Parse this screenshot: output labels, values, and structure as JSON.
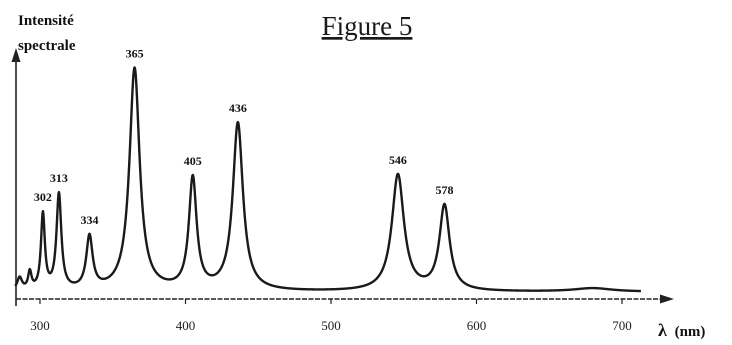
{
  "chart_data": {
    "type": "line",
    "title": "Figure 5",
    "ylabel": [
      "Intensité",
      "spectrale"
    ],
    "xlabel_symbol": "λ",
    "xlabel_unit": "(nm)",
    "xlim": [
      283,
      713
    ],
    "ylim": [
      0,
      1
    ],
    "x_ticks": [
      300,
      400,
      500,
      600,
      700
    ],
    "grid": false,
    "legend": "none",
    "y_ticks_shown": false,
    "series": [
      {
        "peaks": [
          {
            "label": "302",
            "x": 302,
            "y": 0.302,
            "width": 1.6
          },
          {
            "label": "313",
            "x": 313,
            "y": 0.382,
            "width": 2.0
          },
          {
            "label": "334",
            "x": 334,
            "y": 0.21,
            "width": 2.6
          },
          {
            "label": "365",
            "x": 365,
            "y": 0.89,
            "width": 4.2
          },
          {
            "label": "405",
            "x": 405,
            "y": 0.445,
            "width": 3.2
          },
          {
            "label": "436",
            "x": 436,
            "y": 0.67,
            "width": 4.2
          },
          {
            "label": "546",
            "x": 546,
            "y": 0.465,
            "width": 5.0
          },
          {
            "label": "578",
            "x": 578,
            "y": 0.34,
            "width": 4.2
          }
        ],
        "minor_peaks": [
          {
            "x": 286,
            "y": 0.05,
            "width": 2.0
          },
          {
            "x": 293,
            "y": 0.07,
            "width": 1.4
          },
          {
            "x": 680,
            "y": 0.014,
            "width": 16
          }
        ],
        "baseline": 0.028
      }
    ]
  }
}
